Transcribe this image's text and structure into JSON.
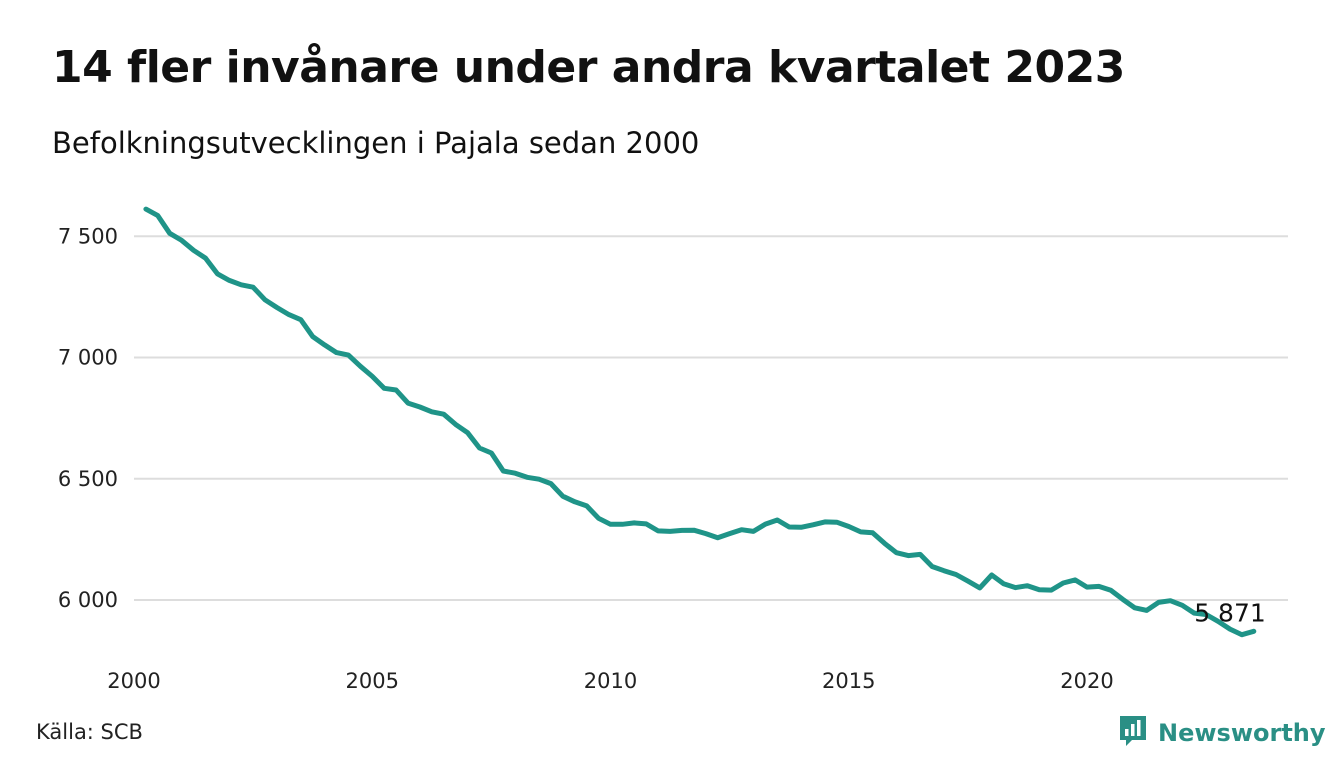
{
  "source_label": "Källa: SCB",
  "brand": {
    "name": "Newsworthy",
    "icon": "newsworthy-logo-icon",
    "color": "#2a8f85"
  },
  "chart_data": {
    "type": "line",
    "title": "14 fler invånare under andra kvartalet 2023",
    "subtitle": "Befolkningsutvecklingen i Pajala sedan 2000",
    "xlabel": "",
    "ylabel": "",
    "x_ticks": [
      "2000",
      "2005",
      "2010",
      "2015",
      "2020"
    ],
    "y_ticks": [
      {
        "value": 6000,
        "label": "6 000"
      },
      {
        "value": 6500,
        "label": "6 500"
      },
      {
        "value": 7000,
        "label": "7 000"
      },
      {
        "value": 7500,
        "label": "7 500"
      }
    ],
    "xlim": [
      2000,
      2024
    ],
    "ylim": [
      5800,
      7700
    ],
    "grid": "horizontal",
    "line_color": "#1f9488",
    "end_label": "5 871",
    "series": [
      {
        "values": [
          [
            2000.25,
            7612
          ],
          [
            2000.5,
            7585
          ],
          [
            2000.75,
            7512
          ],
          [
            2001.0,
            7483
          ],
          [
            2001.25,
            7442
          ],
          [
            2001.5,
            7410
          ],
          [
            2001.75,
            7345
          ],
          [
            2002.0,
            7318
          ],
          [
            2002.25,
            7300
          ],
          [
            2002.5,
            7290
          ],
          [
            2002.75,
            7238
          ],
          [
            2003.0,
            7206
          ],
          [
            2003.25,
            7177
          ],
          [
            2003.5,
            7156
          ],
          [
            2003.75,
            7086
          ],
          [
            2004.0,
            7052
          ],
          [
            2004.25,
            7020
          ],
          [
            2004.5,
            7010
          ],
          [
            2004.75,
            6964
          ],
          [
            2005.0,
            6922
          ],
          [
            2005.25,
            6873
          ],
          [
            2005.5,
            6866
          ],
          [
            2005.75,
            6812
          ],
          [
            2006.0,
            6796
          ],
          [
            2006.25,
            6776
          ],
          [
            2006.5,
            6766
          ],
          [
            2006.75,
            6724
          ],
          [
            2007.0,
            6690
          ],
          [
            2007.25,
            6627
          ],
          [
            2007.5,
            6606
          ],
          [
            2007.75,
            6532
          ],
          [
            2008.0,
            6523
          ],
          [
            2008.25,
            6506
          ],
          [
            2008.5,
            6498
          ],
          [
            2008.75,
            6480
          ],
          [
            2009.0,
            6428
          ],
          [
            2009.25,
            6405
          ],
          [
            2009.5,
            6388
          ],
          [
            2009.75,
            6337
          ],
          [
            2010.0,
            6312
          ],
          [
            2010.25,
            6312
          ],
          [
            2010.5,
            6318
          ],
          [
            2010.75,
            6314
          ],
          [
            2011.0,
            6285
          ],
          [
            2011.25,
            6283
          ],
          [
            2011.5,
            6287
          ],
          [
            2011.75,
            6288
          ],
          [
            2012.0,
            6274
          ],
          [
            2012.25,
            6257
          ],
          [
            2012.5,
            6274
          ],
          [
            2012.75,
            6290
          ],
          [
            2013.0,
            6283
          ],
          [
            2013.25,
            6313
          ],
          [
            2013.5,
            6330
          ],
          [
            2013.75,
            6301
          ],
          [
            2014.0,
            6300
          ],
          [
            2014.25,
            6310
          ],
          [
            2014.5,
            6322
          ],
          [
            2014.75,
            6321
          ],
          [
            2015.0,
            6303
          ],
          [
            2015.25,
            6281
          ],
          [
            2015.5,
            6277
          ],
          [
            2015.75,
            6234
          ],
          [
            2016.0,
            6195
          ],
          [
            2016.25,
            6183
          ],
          [
            2016.5,
            6188
          ],
          [
            2016.75,
            6138
          ],
          [
            2017.0,
            6121
          ],
          [
            2017.25,
            6105
          ],
          [
            2017.5,
            6078
          ],
          [
            2017.75,
            6050
          ],
          [
            2018.0,
            6103
          ],
          [
            2018.25,
            6067
          ],
          [
            2018.5,
            6051
          ],
          [
            2018.75,
            6059
          ],
          [
            2019.0,
            6042
          ],
          [
            2019.25,
            6041
          ],
          [
            2019.5,
            6070
          ],
          [
            2019.75,
            6083
          ],
          [
            2020.0,
            6053
          ],
          [
            2020.25,
            6056
          ],
          [
            2020.5,
            6040
          ],
          [
            2020.75,
            6003
          ],
          [
            2021.0,
            5968
          ],
          [
            2021.25,
            5957
          ],
          [
            2021.5,
            5990
          ],
          [
            2021.75,
            5997
          ],
          [
            2022.0,
            5978
          ],
          [
            2022.25,
            5946
          ],
          [
            2022.5,
            5940
          ],
          [
            2022.75,
            5912
          ],
          [
            2023.0,
            5880
          ],
          [
            2023.25,
            5857
          ],
          [
            2023.5,
            5871
          ]
        ]
      }
    ]
  }
}
